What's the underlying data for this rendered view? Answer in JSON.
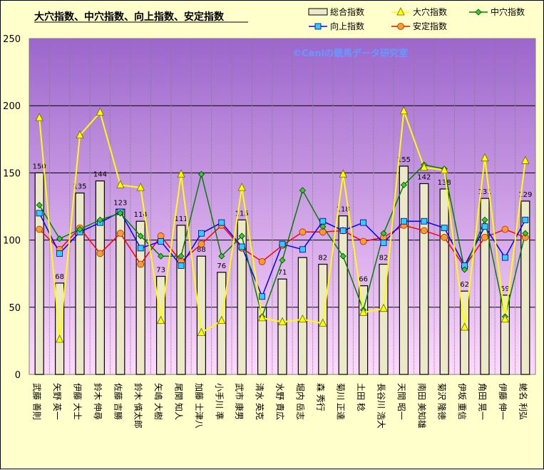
{
  "chart_data": {
    "type": "bar+line",
    "title": "大穴指数、中穴指数、向上指数、安定指数",
    "watermark": "©Caniの競馬データ研究室",
    "grid": true,
    "legend_position": "top-right",
    "ylim": [
      0,
      250
    ],
    "yticks": [
      0,
      50,
      100,
      150,
      200,
      250
    ],
    "categories": [
      "武藤 善則",
      "矢野 英一",
      "伊藤 大士",
      "鈴木 伸尋",
      "佐藤 吉勝",
      "鈴木 慎太郎",
      "矢嶋 大樹",
      "尾関 知人",
      "加藤 士津八",
      "小手川 準",
      "武市 康男",
      "清水 英克",
      "水野 貴広",
      "堀内 岳志",
      "森 秀行",
      "菊川 正達",
      "土田 稔",
      "長谷川 浩大",
      "天間 昭一",
      "南田 美知雄",
      "菊沢 隆徳",
      "伊坂 重信",
      "角田 晃一",
      "伊藤 伸一",
      "蛯名 利弘"
    ],
    "series": [
      {
        "name": "総合指数",
        "kind": "bar",
        "color": "#ece9c9",
        "values": [
          150,
          68,
          135,
          144,
          123,
          114,
          73,
          111,
          88,
          76,
          115,
          50,
          71,
          87,
          82,
          118,
          66,
          82,
          155,
          142,
          138,
          62,
          131,
          59,
          129
        ],
        "labels_shown": [
          150,
          68,
          135,
          144,
          123,
          114,
          73,
          111,
          88,
          76,
          115,
          null,
          71,
          null,
          82,
          118,
          66,
          82,
          155,
          142,
          138,
          62,
          131,
          59,
          129
        ]
      },
      {
        "name": "大穴指数",
        "kind": "line",
        "color": "#ffff00",
        "marker": "triangle",
        "values": [
          191,
          26,
          178,
          195,
          141,
          139,
          40,
          149,
          31,
          40,
          139,
          42,
          39,
          41,
          38,
          149,
          46,
          49,
          196,
          154,
          152,
          35,
          161,
          41,
          159
        ]
      },
      {
        "name": "中穴指数",
        "kind": "line",
        "color": "#008000",
        "marker": "diamond",
        "values": [
          126,
          101,
          108,
          115,
          120,
          103,
          88,
          88,
          149,
          88,
          103,
          43,
          85,
          137,
          110,
          88,
          48,
          105,
          141,
          156,
          153,
          78,
          115,
          43,
          105
        ]
      },
      {
        "name": "向上指数",
        "kind": "line",
        "color": "#0000ff",
        "marker": "square",
        "values": [
          120,
          90,
          106,
          113,
          121,
          94,
          99,
          81,
          105,
          113,
          95,
          58,
          97,
          93,
          114,
          107,
          113,
          98,
          114,
          114,
          109,
          81,
          110,
          87,
          115
        ]
      },
      {
        "name": "安定指数",
        "kind": "line",
        "color": "#ff0000",
        "marker": "circle",
        "values": [
          108,
          93,
          109,
          90,
          105,
          82,
          103,
          84,
          97,
          111,
          94,
          84,
          96,
          106,
          106,
          107,
          99,
          102,
          111,
          107,
          102,
          80,
          102,
          108,
          102
        ]
      }
    ]
  }
}
